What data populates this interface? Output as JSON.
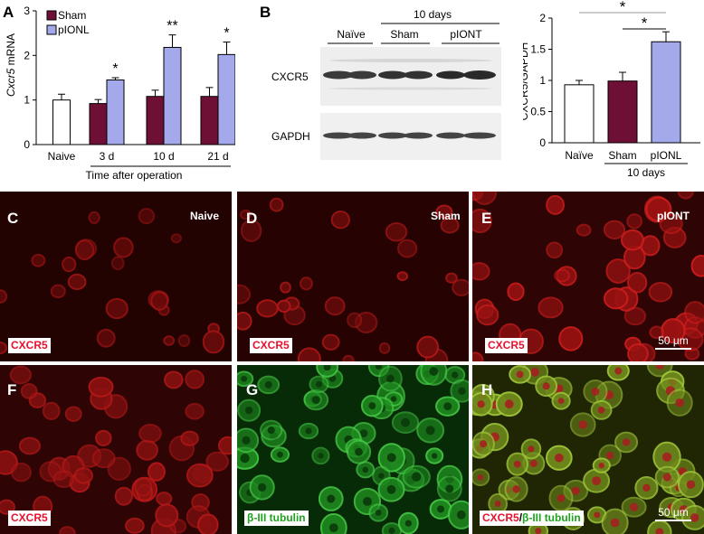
{
  "panels": {
    "A": {
      "letter": "A",
      "ylabel_italic": "Cxcr5",
      "ylabel_rest": " mRNA",
      "xlabel": "Time after operation",
      "legend": [
        {
          "name": "Sham",
          "color": "#6e0f36"
        },
        {
          "name": "pIONL",
          "color": "#a4a9ec"
        }
      ]
    },
    "B": {
      "letter": "B",
      "period": "10 days",
      "lanes": [
        "Naïve",
        "Sham",
        "pIONT"
      ],
      "rows": [
        "CXCR5",
        "GAPDH"
      ]
    },
    "C": {
      "letter": "C",
      "condition": "Naive",
      "stain": "CXCR5"
    },
    "D": {
      "letter": "D",
      "condition": "Sham",
      "stain": "CXCR5"
    },
    "E": {
      "letter": "E",
      "condition": "pIONT",
      "stain": "CXCR5",
      "scale": "50 μm"
    },
    "F": {
      "letter": "F",
      "stain": "CXCR5"
    },
    "G": {
      "letter": "G",
      "stain": "β-III tubulin"
    },
    "H": {
      "letter": "H",
      "stain1": "CXCR5",
      "sep": "/",
      "stain2": "β-III tubulin",
      "scale": "50 μm"
    }
  },
  "chart_data": [
    {
      "type": "bar",
      "panel": "A",
      "ylabel": "Cxcr5 mRNA",
      "xlabel": "Time after operation",
      "ylim": [
        0,
        3
      ],
      "yticks": [
        "0",
        "1",
        "2",
        "3"
      ],
      "categories": [
        "Naive",
        "3 d",
        "10 d",
        "21 d"
      ],
      "series": [
        {
          "name": "Naive",
          "values": [
            1.0,
            null,
            null,
            null
          ],
          "errors": [
            0.13,
            null,
            null,
            null
          ],
          "color": "#ffffff"
        },
        {
          "name": "Sham",
          "values": [
            null,
            0.92,
            1.08,
            1.08
          ],
          "errors": [
            null,
            0.09,
            0.14,
            0.2
          ],
          "color": "#6e0f36"
        },
        {
          "name": "pIONL",
          "values": [
            null,
            1.45,
            2.18,
            2.02
          ],
          "errors": [
            null,
            0.05,
            0.28,
            0.28
          ],
          "color": "#a4a9ec"
        }
      ],
      "annotations": [
        {
          "category": "3 d",
          "series": "pIONL",
          "text": "*"
        },
        {
          "category": "10 d",
          "series": "pIONL",
          "text": "**"
        },
        {
          "category": "21 d",
          "series": "pIONL",
          "text": "*"
        }
      ],
      "grid": false
    },
    {
      "type": "bar",
      "panel": "B",
      "ylabel": "CXCR5/GAPDH",
      "ylim": [
        0,
        2
      ],
      "yticks": [
        "0",
        "0.5",
        "1",
        "1.5",
        "2"
      ],
      "categories": [
        "Naïve",
        "Sham",
        "pIONL"
      ],
      "group_label": "10 days",
      "values": [
        0.93,
        0.99,
        1.62
      ],
      "errors": [
        0.07,
        0.14,
        0.16
      ],
      "colors": [
        "#ffffff",
        "#6e0f36",
        "#a4a9ec"
      ],
      "annotations": [
        {
          "from": "Naïve",
          "to": "pIONL",
          "text": "*"
        },
        {
          "from": "Sham",
          "to": "pIONL",
          "text": "*"
        }
      ],
      "grid": false
    }
  ]
}
